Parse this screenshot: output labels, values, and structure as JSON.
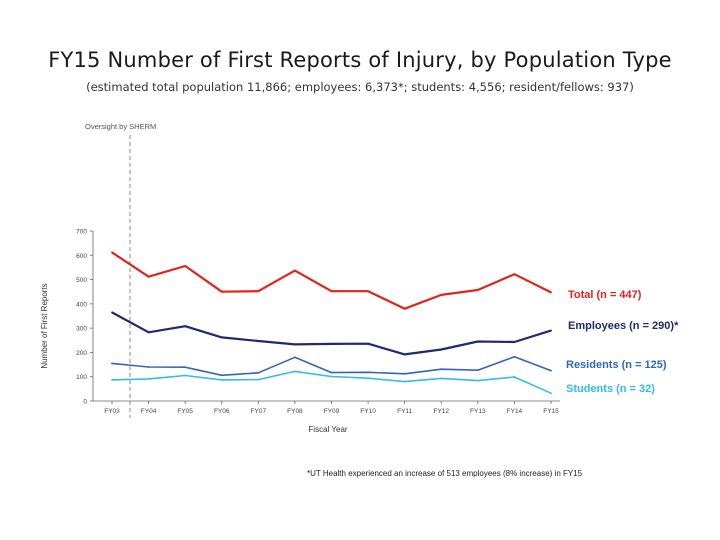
{
  "title": "FY15 Number of First Reports of Injury, by Population Type",
  "subtitle": "(estimated total population 11,866; employees: 6,373*; students: 4,556; resident/fellows: 937)",
  "chart_data": {
    "type": "line",
    "xlabel": "Fiscal Year",
    "ylabel": "Number of First Reports",
    "ylim": [
      0,
      700
    ],
    "yticks": [
      0,
      100,
      200,
      300,
      400,
      500,
      600,
      700
    ],
    "grid": false,
    "categories": [
      "FY03",
      "FY04",
      "FY05",
      "FY06",
      "FY07",
      "FY08",
      "FY09",
      "FY10",
      "FY11",
      "FY12",
      "FY13",
      "FY14",
      "FY15"
    ],
    "series": [
      {
        "name": "Total (n = 447)",
        "color": "#e3231b",
        "values": [
          612,
          512,
          556,
          450,
          452,
          537,
          452,
          452,
          380,
          437,
          457,
          522,
          447
        ]
      },
      {
        "name": "Employees (n = 290)*",
        "color": "#1f2a6e",
        "values": [
          365,
          283,
          308,
          262,
          247,
          233,
          235,
          236,
          192,
          212,
          245,
          243,
          290
        ]
      },
      {
        "name": "Residents (n = 125)",
        "color": "#3366bb",
        "values": [
          155,
          140,
          139,
          106,
          116,
          180,
          117,
          118,
          112,
          131,
          127,
          182,
          125
        ]
      },
      {
        "name": "Students (n  = 32)",
        "color": "#33bbee",
        "values": [
          87,
          91,
          105,
          87,
          88,
          122,
          101,
          94,
          80,
          93,
          84,
          99,
          32
        ]
      }
    ],
    "annotation": "Oversight by  SHERM",
    "footnote": "*UT Health experienced an increase of 513 employees (8% increase) in FY15"
  }
}
